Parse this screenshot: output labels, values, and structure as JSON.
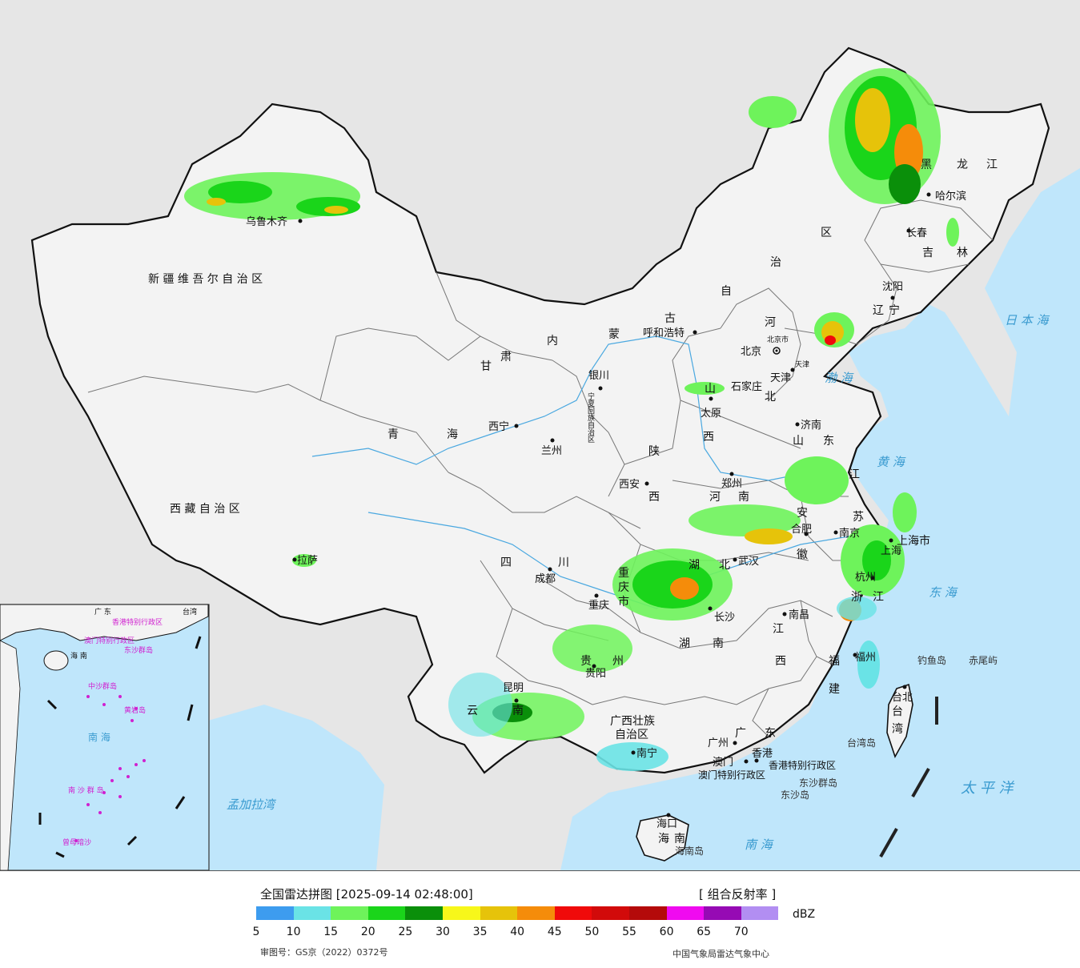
{
  "map": {
    "province_labels": [
      {
        "text": "新 疆 维 吾 尔 自 治 区"
      },
      {
        "text": "西 藏 自 治 区"
      },
      {
        "text": "青"
      },
      {
        "text": "海"
      },
      {
        "text": "甘"
      },
      {
        "text": "肃"
      },
      {
        "text": "内"
      },
      {
        "text": "蒙"
      },
      {
        "text": "古"
      },
      {
        "text": "自"
      },
      {
        "text": "治"
      },
      {
        "text": "区"
      },
      {
        "text": "黑"
      },
      {
        "text": "龙"
      },
      {
        "text": "江"
      },
      {
        "text": "吉"
      },
      {
        "text": "林"
      },
      {
        "text": "辽"
      },
      {
        "text": "宁"
      },
      {
        "text": "河"
      },
      {
        "text": "北"
      },
      {
        "text": "山"
      },
      {
        "text": "西"
      },
      {
        "text": "陕"
      },
      {
        "text": "西"
      },
      {
        "text": "宁夏回族自治区"
      },
      {
        "text": "山"
      },
      {
        "text": "东"
      },
      {
        "text": "河"
      },
      {
        "text": "南"
      },
      {
        "text": "江"
      },
      {
        "text": "苏"
      },
      {
        "text": "安"
      },
      {
        "text": "徽"
      },
      {
        "text": "上海市"
      },
      {
        "text": "湖"
      },
      {
        "text": "北"
      },
      {
        "text": "四"
      },
      {
        "text": "川"
      },
      {
        "text": "重"
      },
      {
        "text": "庆"
      },
      {
        "text": "市"
      },
      {
        "text": "浙"
      },
      {
        "text": "江"
      },
      {
        "text": "湖"
      },
      {
        "text": "南"
      },
      {
        "text": "江"
      },
      {
        "text": "西"
      },
      {
        "text": "福"
      },
      {
        "text": "建"
      },
      {
        "text": "贵"
      },
      {
        "text": "州"
      },
      {
        "text": "云"
      },
      {
        "text": "南"
      },
      {
        "text": "广西壮族"
      },
      {
        "text": "自治区"
      },
      {
        "text": "广"
      },
      {
        "text": "东"
      },
      {
        "text": "台"
      },
      {
        "text": "湾"
      },
      {
        "text": "海"
      },
      {
        "text": "南"
      },
      {
        "text": "香港特别行政区"
      },
      {
        "text": "澳门特别行政区"
      },
      {
        "text": "北京市"
      },
      {
        "text": "天津"
      }
    ],
    "city_labels": [
      {
        "text": "乌鲁木齐"
      },
      {
        "text": "拉萨"
      },
      {
        "text": "西宁"
      },
      {
        "text": "兰州"
      },
      {
        "text": "银川"
      },
      {
        "text": "呼和浩特"
      },
      {
        "text": "北京"
      },
      {
        "text": "天津"
      },
      {
        "text": "石家庄"
      },
      {
        "text": "太原"
      },
      {
        "text": "济南"
      },
      {
        "text": "郑州"
      },
      {
        "text": "西安"
      },
      {
        "text": "成都"
      },
      {
        "text": "重庆"
      },
      {
        "text": "武汉"
      },
      {
        "text": "合肥"
      },
      {
        "text": "南京"
      },
      {
        "text": "上海"
      },
      {
        "text": "杭州"
      },
      {
        "text": "长沙"
      },
      {
        "text": "南昌"
      },
      {
        "text": "福州"
      },
      {
        "text": "贵阳"
      },
      {
        "text": "昆明"
      },
      {
        "text": "南宁"
      },
      {
        "text": "广州"
      },
      {
        "text": "澳门"
      },
      {
        "text": "香港"
      },
      {
        "text": "海口"
      },
      {
        "text": "台北"
      },
      {
        "text": "哈尔滨"
      },
      {
        "text": "长春"
      },
      {
        "text": "沈阳"
      }
    ],
    "sea_labels": [
      {
        "text": "日 本 海"
      },
      {
        "text": "渤 海"
      },
      {
        "text": "黄 海"
      },
      {
        "text": "东 海"
      },
      {
        "text": "太 平 洋"
      },
      {
        "text": "南 海"
      },
      {
        "text": "孟加拉湾"
      }
    ],
    "island_labels": [
      {
        "text": "钓鱼岛"
      },
      {
        "text": "赤尾屿"
      },
      {
        "text": "台湾岛"
      },
      {
        "text": "东沙群岛"
      },
      {
        "text": "东沙岛"
      },
      {
        "text": "海南岛"
      }
    ],
    "inset_labels": [
      {
        "text": "广 东"
      },
      {
        "text": "香港特别行政区"
      },
      {
        "text": "澳门特别行政区"
      },
      {
        "text": "东沙群岛"
      },
      {
        "text": "海 南"
      },
      {
        "text": "中沙群岛"
      },
      {
        "text": "南 海"
      },
      {
        "text": "南 沙 群 岛"
      },
      {
        "text": "曾母暗沙"
      },
      {
        "text": "台湾"
      },
      {
        "text": "黄岩岛"
      }
    ]
  },
  "legend": {
    "title": "全国雷达拼图 [2025-09-14 02:48:00]",
    "product": "[ 组合反射率 ]",
    "unit": "dBZ",
    "colors": [
      "#3d9cef",
      "#6ae3e6",
      "#6ef35b",
      "#1ad51a",
      "#0a8f0a",
      "#f7f71a",
      "#e6c30a",
      "#f58c0a",
      "#f00a0a",
      "#d20a0a",
      "#b40a0a",
      "#f00af0",
      "#960ab4",
      "#b28ef2"
    ],
    "ticks": [
      "5",
      "10",
      "15",
      "20",
      "25",
      "30",
      "35",
      "40",
      "45",
      "50",
      "55",
      "60",
      "65",
      "70"
    ],
    "approval": "审图号：GS京（2022）0372号",
    "agency": "中国气象局雷达气象中心"
  }
}
